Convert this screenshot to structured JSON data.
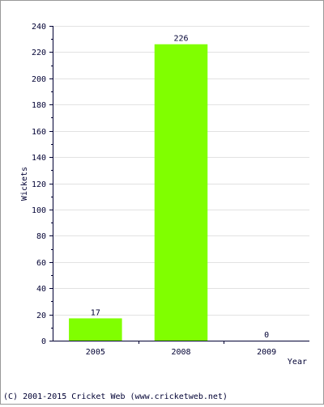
{
  "chart_data": {
    "type": "bar",
    "categories": [
      "2005",
      "2008",
      "2009"
    ],
    "values": [
      17,
      226,
      0
    ],
    "data_labels": [
      "17",
      "226",
      "0"
    ],
    "xlabel": "Year",
    "ylabel": "Wickets",
    "ylim": [
      0,
      240
    ],
    "yticks": [
      0,
      20,
      40,
      60,
      80,
      100,
      120,
      140,
      160,
      180,
      200,
      220,
      240
    ],
    "grid": true,
    "bar_color": "#80ff00"
  },
  "footer": {
    "copyright": "(C) 2001-2015 Cricket Web (www.cricketweb.net)"
  }
}
